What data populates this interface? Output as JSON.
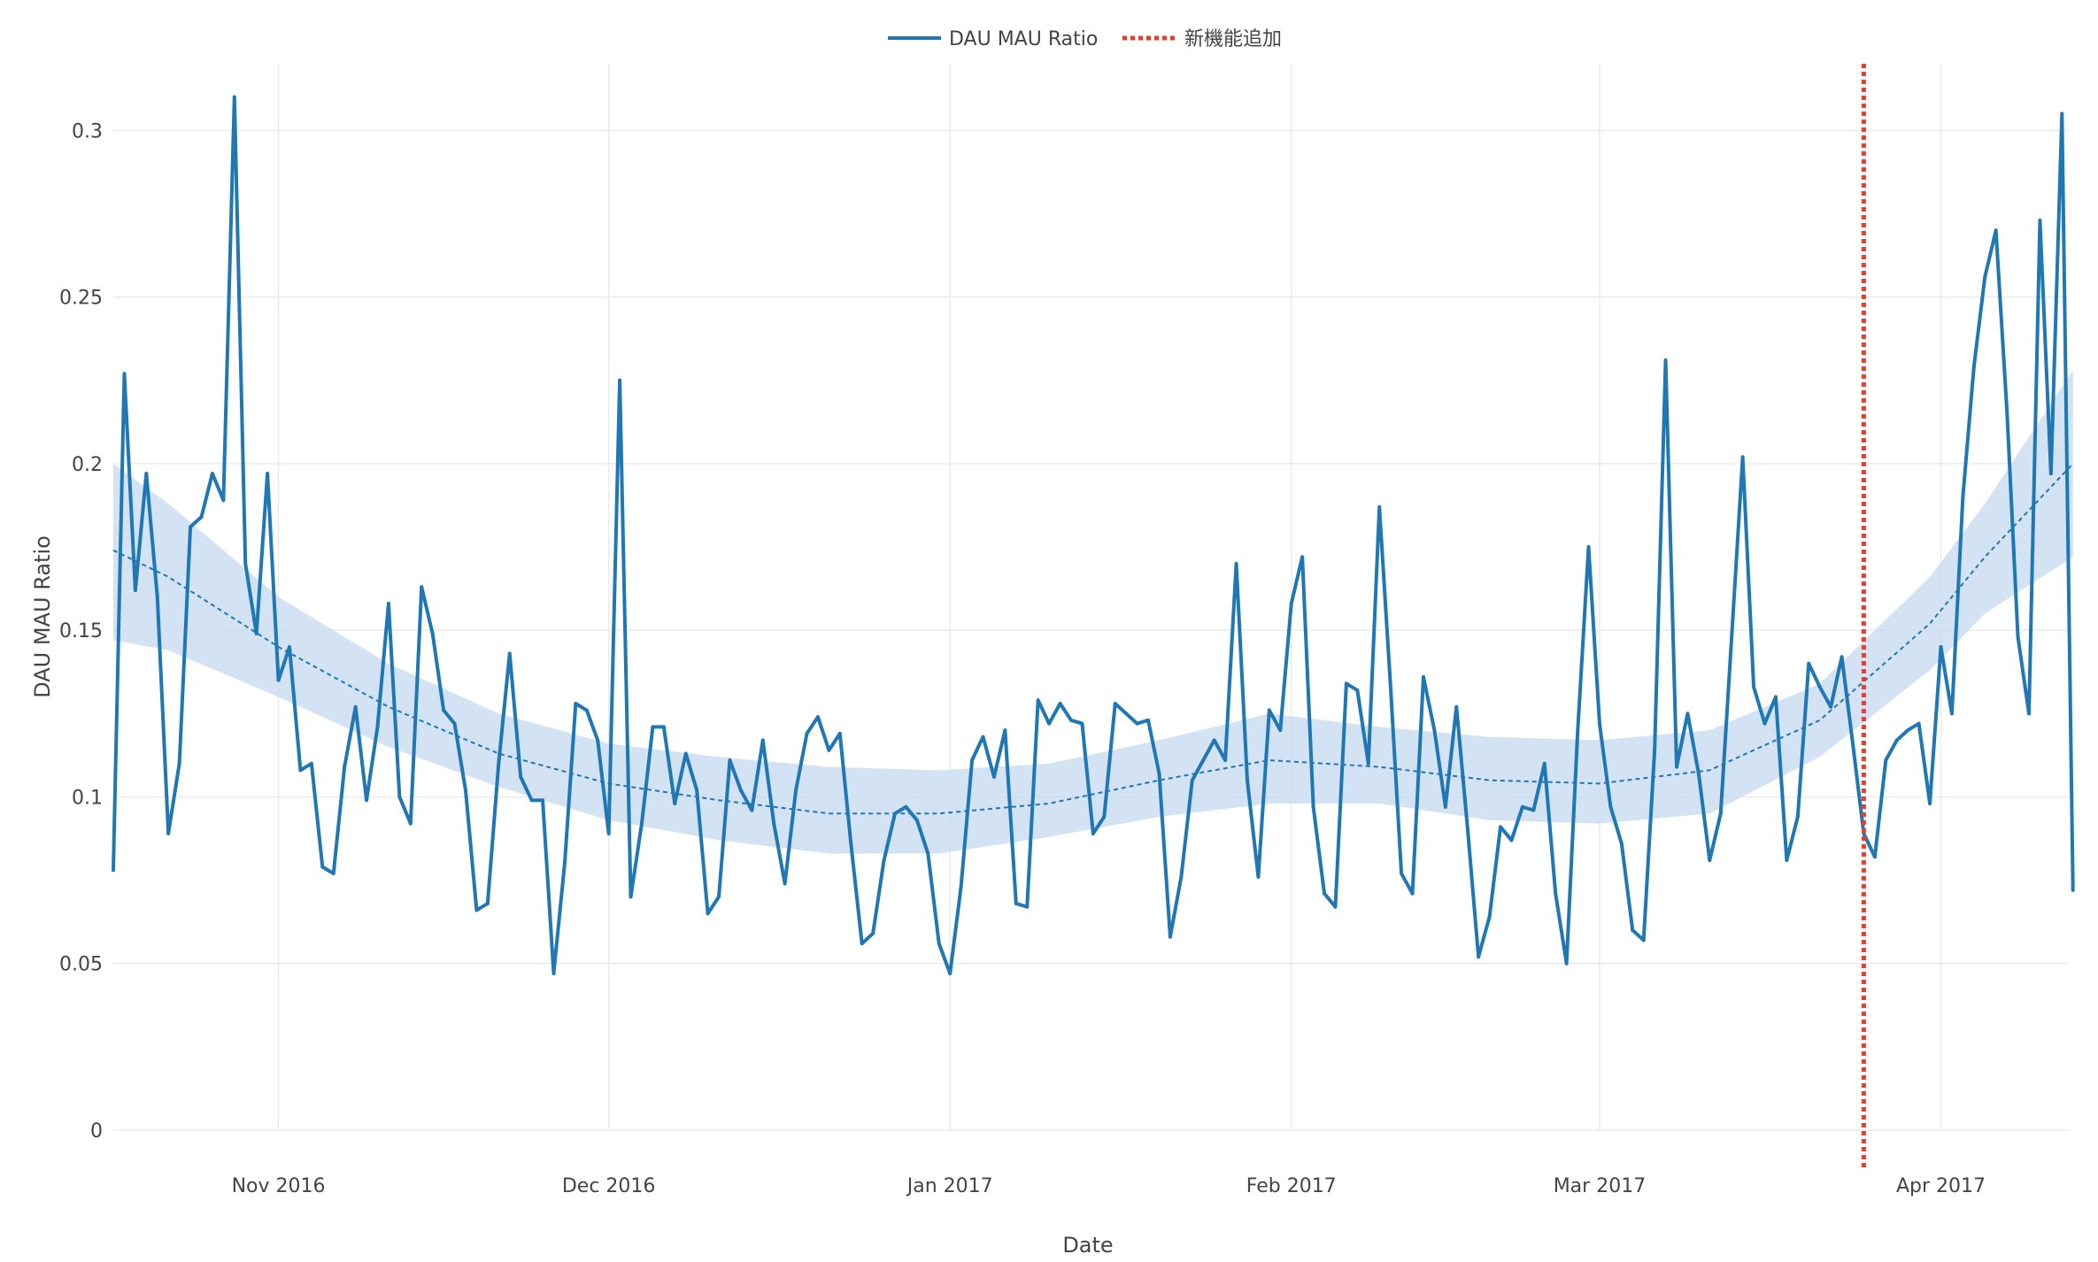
{
  "chart_data": {
    "type": "line",
    "title": "",
    "xlabel": "Date",
    "ylabel": "DAU MAU Ratio",
    "ylim": [
      0,
      0.32
    ],
    "xlim": [
      "2016-10-17",
      "2017-04-12"
    ],
    "x_ticks": [
      {
        "date": "2016-11-01",
        "label": "Nov 2016"
      },
      {
        "date": "2016-12-01",
        "label": "Dec 2016"
      },
      {
        "date": "2017-01-01",
        "label": "Jan 2017"
      },
      {
        "date": "2017-02-01",
        "label": "Feb 2017"
      },
      {
        "date": "2017-03-01",
        "label": "Mar 2017"
      },
      {
        "date": "2017-04-01",
        "label": "Apr 2017"
      }
    ],
    "y_ticks": [
      0,
      0.05,
      0.1,
      0.15,
      0.2,
      0.25,
      0.3
    ],
    "y_tick_labels": [
      "0",
      "0.05",
      "0.1",
      "0.15",
      "0.2",
      "0.25",
      "0.3"
    ],
    "grid": true,
    "legend_position": "top-center",
    "series": [
      {
        "name": "DAU MAU Ratio",
        "color": "#1f77b4",
        "points": [
          [
            "2016-10-17",
            0.078
          ],
          [
            "2016-10-18",
            0.227
          ],
          [
            "2016-10-19",
            0.162
          ],
          [
            "2016-10-20",
            0.197
          ],
          [
            "2016-10-21",
            0.16
          ],
          [
            "2016-10-22",
            0.089
          ],
          [
            "2016-10-23",
            0.11
          ],
          [
            "2016-10-24",
            0.181
          ],
          [
            "2016-10-25",
            0.184
          ],
          [
            "2016-10-26",
            0.197
          ],
          [
            "2016-10-27",
            0.189
          ],
          [
            "2016-10-28",
            0.31
          ],
          [
            "2016-10-29",
            0.17
          ],
          [
            "2016-10-30",
            0.149
          ],
          [
            "2016-10-31",
            0.197
          ],
          [
            "2016-11-01",
            0.135
          ],
          [
            "2016-11-02",
            0.145
          ],
          [
            "2016-11-03",
            0.108
          ],
          [
            "2016-11-04",
            0.11
          ],
          [
            "2016-11-05",
            0.079
          ],
          [
            "2016-11-06",
            0.077
          ],
          [
            "2016-11-07",
            0.109
          ],
          [
            "2016-11-08",
            0.127
          ],
          [
            "2016-11-09",
            0.099
          ],
          [
            "2016-11-10",
            0.121
          ],
          [
            "2016-11-11",
            0.158
          ],
          [
            "2016-11-12",
            0.1
          ],
          [
            "2016-11-13",
            0.092
          ],
          [
            "2016-11-14",
            0.163
          ],
          [
            "2016-11-15",
            0.149
          ],
          [
            "2016-11-16",
            0.126
          ],
          [
            "2016-11-17",
            0.122
          ],
          [
            "2016-11-18",
            0.102
          ],
          [
            "2016-11-19",
            0.066
          ],
          [
            "2016-11-20",
            0.068
          ],
          [
            "2016-11-21",
            0.11
          ],
          [
            "2016-11-22",
            0.143
          ],
          [
            "2016-11-23",
            0.106
          ],
          [
            "2016-11-24",
            0.099
          ],
          [
            "2016-11-25",
            0.099
          ],
          [
            "2016-11-26",
            0.047
          ],
          [
            "2016-11-27",
            0.08
          ],
          [
            "2016-11-28",
            0.128
          ],
          [
            "2016-11-29",
            0.126
          ],
          [
            "2016-11-30",
            0.117
          ],
          [
            "2016-12-01",
            0.089
          ],
          [
            "2016-12-02",
            0.225
          ],
          [
            "2016-12-03",
            0.07
          ],
          [
            "2016-12-04",
            0.092
          ],
          [
            "2016-12-05",
            0.121
          ],
          [
            "2016-12-06",
            0.121
          ],
          [
            "2016-12-07",
            0.098
          ],
          [
            "2016-12-08",
            0.113
          ],
          [
            "2016-12-09",
            0.102
          ],
          [
            "2016-12-10",
            0.065
          ],
          [
            "2016-12-11",
            0.07
          ],
          [
            "2016-12-12",
            0.111
          ],
          [
            "2016-12-13",
            0.102
          ],
          [
            "2016-12-14",
            0.096
          ],
          [
            "2016-12-15",
            0.117
          ],
          [
            "2016-12-16",
            0.092
          ],
          [
            "2016-12-17",
            0.074
          ],
          [
            "2016-12-18",
            0.102
          ],
          [
            "2016-12-19",
            0.119
          ],
          [
            "2016-12-20",
            0.124
          ],
          [
            "2016-12-21",
            0.114
          ],
          [
            "2016-12-22",
            0.119
          ],
          [
            "2016-12-23",
            0.086
          ],
          [
            "2016-12-24",
            0.056
          ],
          [
            "2016-12-25",
            0.059
          ],
          [
            "2016-12-26",
            0.081
          ],
          [
            "2016-12-27",
            0.095
          ],
          [
            "2016-12-28",
            0.097
          ],
          [
            "2016-12-29",
            0.093
          ],
          [
            "2016-12-30",
            0.083
          ],
          [
            "2016-12-31",
            0.056
          ],
          [
            "2017-01-01",
            0.047
          ],
          [
            "2017-01-02",
            0.073
          ],
          [
            "2017-01-03",
            0.111
          ],
          [
            "2017-01-04",
            0.118
          ],
          [
            "2017-01-05",
            0.106
          ],
          [
            "2017-01-06",
            0.12
          ],
          [
            "2017-01-07",
            0.068
          ],
          [
            "2017-01-08",
            0.067
          ],
          [
            "2017-01-09",
            0.129
          ],
          [
            "2017-01-10",
            0.122
          ],
          [
            "2017-01-11",
            0.128
          ],
          [
            "2017-01-12",
            0.123
          ],
          [
            "2017-01-13",
            0.122
          ],
          [
            "2017-01-14",
            0.089
          ],
          [
            "2017-01-15",
            0.094
          ],
          [
            "2017-01-16",
            0.128
          ],
          [
            "2017-01-17",
            0.125
          ],
          [
            "2017-01-18",
            0.122
          ],
          [
            "2017-01-19",
            0.123
          ],
          [
            "2017-01-20",
            0.107
          ],
          [
            "2017-01-21",
            0.058
          ],
          [
            "2017-01-22",
            0.076
          ],
          [
            "2017-01-23",
            0.105
          ],
          [
            "2017-01-24",
            0.111
          ],
          [
            "2017-01-25",
            0.117
          ],
          [
            "2017-01-26",
            0.111
          ],
          [
            "2017-01-27",
            0.17
          ],
          [
            "2017-01-28",
            0.105
          ],
          [
            "2017-01-29",
            0.076
          ],
          [
            "2017-01-30",
            0.126
          ],
          [
            "2017-01-31",
            0.12
          ],
          [
            "2017-02-01",
            0.158
          ],
          [
            "2017-02-02",
            0.172
          ],
          [
            "2017-02-03",
            0.097
          ],
          [
            "2017-02-04",
            0.071
          ],
          [
            "2017-02-05",
            0.067
          ],
          [
            "2017-02-06",
            0.134
          ],
          [
            "2017-02-07",
            0.132
          ],
          [
            "2017-02-08",
            0.11
          ],
          [
            "2017-02-09",
            0.187
          ],
          [
            "2017-02-10",
            0.134
          ],
          [
            "2017-02-11",
            0.077
          ],
          [
            "2017-02-12",
            0.071
          ],
          [
            "2017-02-13",
            0.136
          ],
          [
            "2017-02-14",
            0.12
          ],
          [
            "2017-02-15",
            0.097
          ],
          [
            "2017-02-16",
            0.127
          ],
          [
            "2017-02-17",
            0.091
          ],
          [
            "2017-02-18",
            0.052
          ],
          [
            "2017-02-19",
            0.064
          ],
          [
            "2017-02-20",
            0.091
          ],
          [
            "2017-02-21",
            0.087
          ],
          [
            "2017-02-22",
            0.097
          ],
          [
            "2017-02-23",
            0.096
          ],
          [
            "2017-02-24",
            0.11
          ],
          [
            "2017-02-25",
            0.071
          ],
          [
            "2017-02-26",
            0.05
          ],
          [
            "2017-02-27",
            0.119
          ],
          [
            "2017-02-28",
            0.175
          ],
          [
            "2017-03-01",
            0.122
          ],
          [
            "2017-03-02",
            0.097
          ],
          [
            "2017-03-03",
            0.086
          ],
          [
            "2017-03-04",
            0.06
          ],
          [
            "2017-03-05",
            0.057
          ],
          [
            "2017-03-06",
            0.114
          ],
          [
            "2017-03-07",
            0.231
          ],
          [
            "2017-03-08",
            0.109
          ],
          [
            "2017-03-09",
            0.125
          ],
          [
            "2017-03-10",
            0.107
          ],
          [
            "2017-03-11",
            0.081
          ],
          [
            "2017-03-12",
            0.095
          ],
          [
            "2017-03-13",
            0.148
          ],
          [
            "2017-03-14",
            0.202
          ],
          [
            "2017-03-15",
            0.133
          ],
          [
            "2017-03-16",
            0.122
          ],
          [
            "2017-03-17",
            0.13
          ],
          [
            "2017-03-18",
            0.081
          ],
          [
            "2017-03-19",
            0.094
          ],
          [
            "2017-03-20",
            0.14
          ],
          [
            "2017-03-21",
            0.133
          ],
          [
            "2017-03-22",
            0.127
          ],
          [
            "2017-03-23",
            0.142
          ],
          [
            "2017-03-24",
            0.116
          ],
          [
            "2017-03-25",
            0.089
          ],
          [
            "2017-03-26",
            0.082
          ],
          [
            "2017-03-27",
            0.111
          ],
          [
            "2017-03-28",
            0.117
          ],
          [
            "2017-03-29",
            0.12
          ],
          [
            "2017-03-30",
            0.122
          ],
          [
            "2017-03-31",
            0.098
          ],
          [
            "2017-04-01",
            0.145
          ],
          [
            "2017-04-02",
            0.125
          ],
          [
            "2017-04-03",
            0.19
          ],
          [
            "2017-04-04",
            0.229
          ],
          [
            "2017-04-05",
            0.256
          ],
          [
            "2017-04-06",
            0.27
          ],
          [
            "2017-04-07",
            0.216
          ],
          [
            "2017-04-08",
            0.148
          ],
          [
            "2017-04-09",
            0.125
          ],
          [
            "2017-04-10",
            0.273
          ],
          [
            "2017-04-11",
            0.197
          ],
          [
            "2017-04-12",
            0.305
          ],
          [
            "2017-04-13",
            0.072
          ]
        ]
      }
    ],
    "trend": {
      "color": "#1f77b4",
      "band_color": "#c6d9ef",
      "points": [
        [
          "2016-10-17",
          0.174,
          0.147,
          0.2
        ],
        [
          "2016-10-22",
          0.166,
          0.144,
          0.188
        ],
        [
          "2016-11-01",
          0.145,
          0.13,
          0.16
        ],
        [
          "2016-11-11",
          0.127,
          0.115,
          0.14
        ],
        [
          "2016-11-21",
          0.113,
          0.103,
          0.125
        ],
        [
          "2016-12-01",
          0.104,
          0.093,
          0.116
        ],
        [
          "2016-12-11",
          0.099,
          0.087,
          0.112
        ],
        [
          "2016-12-21",
          0.095,
          0.083,
          0.109
        ],
        [
          "2016-12-31",
          0.095,
          0.083,
          0.108
        ],
        [
          "2017-01-10",
          0.098,
          0.088,
          0.11
        ],
        [
          "2017-01-20",
          0.105,
          0.094,
          0.117
        ],
        [
          "2017-01-30",
          0.111,
          0.098,
          0.125
        ],
        [
          "2017-02-09",
          0.109,
          0.098,
          0.121
        ],
        [
          "2017-02-19",
          0.105,
          0.093,
          0.118
        ],
        [
          "2017-03-01",
          0.104,
          0.092,
          0.117
        ],
        [
          "2017-03-11",
          0.108,
          0.095,
          0.12
        ],
        [
          "2017-03-21",
          0.123,
          0.112,
          0.134
        ],
        [
          "2017-03-31",
          0.152,
          0.138,
          0.166
        ],
        [
          "2017-04-05",
          0.172,
          0.155,
          0.188
        ],
        [
          "2017-04-13",
          0.2,
          0.172,
          0.228
        ]
      ]
    },
    "event_line": {
      "name": "新機能追加",
      "date": "2017-03-25",
      "color": "#ef3b2c"
    }
  }
}
